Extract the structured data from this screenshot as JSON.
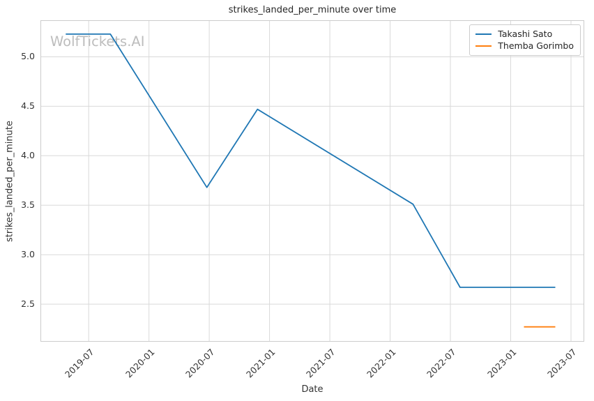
{
  "watermark": "WolfTickets.AI",
  "colors": {
    "background": "#ffffff",
    "grid": "#d9d9d9",
    "spine": "#cccccc",
    "tick_text": "#333333",
    "title_text": "#262626",
    "watermark_text": "#bdbdbd",
    "series_blue": "#1f77b4",
    "series_orange": "#ff7f0e"
  },
  "chart_data": {
    "type": "line",
    "title": "strikes_landed_per_minute over time",
    "xlabel": "Date",
    "ylabel": "strikes_landed_per_minute",
    "grid": true,
    "legend_position": "upper right",
    "x_tick_labels": [
      "2019-07",
      "2020-01",
      "2020-07",
      "2021-01",
      "2021-07",
      "2022-01",
      "2022-07",
      "2023-01",
      "2023-07"
    ],
    "x_tick_values": [
      2019.5,
      2020.0,
      2020.5,
      2021.0,
      2021.5,
      2022.0,
      2022.5,
      2023.0,
      2023.5
    ],
    "y_tick_labels": [
      "2.5",
      "3.0",
      "3.5",
      "4.0",
      "4.5",
      "5.0"
    ],
    "y_tick_values": [
      2.5,
      3.0,
      3.5,
      4.0,
      4.5,
      5.0
    ],
    "xlim": [
      2019.1,
      2023.61
    ],
    "ylim": [
      2.12,
      5.37
    ],
    "series": [
      {
        "name": "Takashi Sato",
        "color": "#1f77b4",
        "dates": [
          "2019-04",
          "2019-09",
          "2020-06",
          "2020-11",
          "2022-03",
          "2022-08",
          "2023-05"
        ],
        "x": [
          2019.31,
          2019.68,
          2020.48,
          2020.9,
          2022.19,
          2022.58,
          2023.37
        ],
        "values": [
          5.23,
          5.23,
          3.68,
          4.47,
          3.51,
          2.67,
          2.67
        ]
      },
      {
        "name": "Themba Gorimbo",
        "color": "#ff7f0e",
        "dates": [
          "2023-02",
          "2023-05"
        ],
        "x": [
          2023.11,
          2023.37
        ],
        "values": [
          2.27,
          2.27
        ]
      }
    ]
  }
}
